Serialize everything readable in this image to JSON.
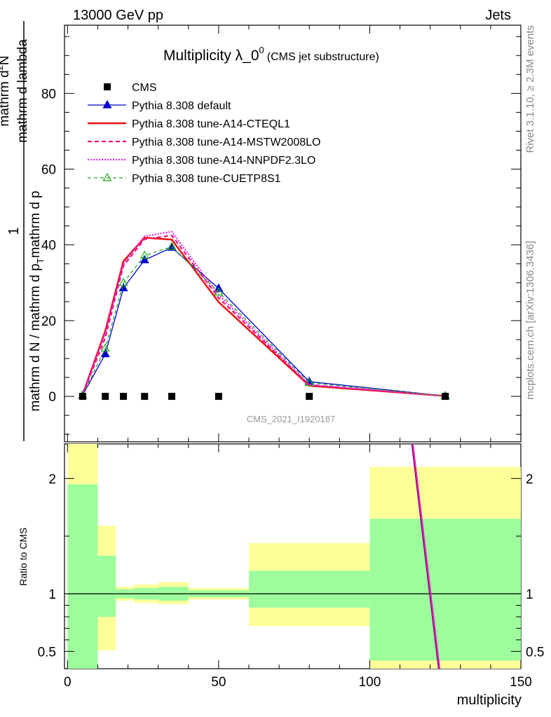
{
  "header": {
    "left": "13000 GeV pp",
    "right": "Jets"
  },
  "title": {
    "main": "Multiplicity λ_0",
    "sup": "0",
    "sub": "(CMS jet substructure)"
  },
  "side_labels": {
    "rivet": "Rivet 3.1.10, ≥ 2.3M events",
    "mcplots": "mcplots.cern.ch [arXiv:1306.3436]"
  },
  "analysis_id": "CMS_2021_I1920187",
  "ylabel_main": {
    "num": "1",
    "den_a": "mathrm d N / mathrm d p",
    "den_sub": "T",
    "den_b": "mathrm d p",
    "den_c": "mathrm d lambda",
    "num_frac_a": "mathrm d",
    "num_frac_sup": "2",
    "num_frac_b": "N"
  },
  "ylabel_ratio": "Ratio to CMS",
  "xlabel": "multiplicity",
  "colors": {
    "cms": "#000000",
    "default": "#0000cc",
    "cteql1": "#ee1111",
    "mstw": "#ee1188",
    "nnpdf": "#dd22dd",
    "cuetp8s1": "#22aa22",
    "band_inner": "#9dfd9d",
    "band_outer": "#ffff99"
  },
  "chart_data": {
    "type": "line",
    "xlim": [
      -1,
      150
    ],
    "x_ticks": [
      0,
      50,
      100,
      150
    ],
    "main": {
      "ylim": [
        -12,
        98
      ],
      "y_ticks": [
        0,
        20,
        40,
        60,
        80
      ]
    },
    "ratio": {
      "ylim": [
        0.35,
        2.3
      ],
      "y_ticks": [
        0.5,
        1,
        2
      ],
      "y_tick_labels": [
        "0.5",
        "1",
        "2"
      ]
    },
    "legend": {
      "position": "top-left",
      "entries": [
        "CMS",
        "Pythia 8.308 default",
        "Pythia 8.308 tune-A14-CTEQL1",
        "Pythia 8.308 tune-A14-MSTW2008LO",
        "Pythia 8.308 tune-A14-NNPDF2.3LO",
        "Pythia 8.308 tune-CUETP8S1"
      ]
    },
    "x": [
      5,
      12.5,
      18.5,
      25.5,
      34.5,
      50,
      80,
      125
    ],
    "series": [
      {
        "name": "CMS",
        "values": [
          0,
          0,
          0,
          0,
          0,
          0,
          0,
          0
        ]
      },
      {
        "name": "Pythia 8.308 default",
        "values": [
          0.3,
          11.2,
          28.6,
          36.0,
          39.3,
          28.5,
          3.9,
          0.1
        ]
      },
      {
        "name": "Pythia 8.308 tune-A14-CTEQL1",
        "values": [
          0.5,
          17.3,
          35.7,
          41.9,
          41.4,
          24.9,
          2.8,
          0.1
        ]
      },
      {
        "name": "Pythia 8.308 tune-A14-MSTW2008LO",
        "values": [
          0.4,
          15.5,
          34.5,
          41.5,
          42.5,
          26.0,
          3.0,
          0.1
        ]
      },
      {
        "name": "Pythia 8.308 tune-A14-NNPDF2.3LO",
        "values": [
          0.5,
          16.8,
          35.0,
          42.3,
          43.5,
          26.8,
          3.1,
          0.1
        ]
      },
      {
        "name": "Pythia 8.308 tune-CUETP8S1",
        "values": [
          0.3,
          12.7,
          30.0,
          37.2,
          39.5,
          27.5,
          3.6,
          0.1
        ]
      }
    ],
    "ratio_bands": [
      {
        "x0": 0,
        "x1": 10,
        "inner": [
          0.3,
          1.95
        ],
        "outer": [
          0.3,
          2.3
        ]
      },
      {
        "x0": 10,
        "x1": 16,
        "inner": [
          0.8,
          1.33
        ],
        "outer": [
          0.51,
          1.59
        ]
      },
      {
        "x0": 16,
        "x1": 22,
        "inner": [
          0.96,
          1.04
        ],
        "outer": [
          0.94,
          1.06
        ]
      },
      {
        "x0": 22,
        "x1": 30,
        "inner": [
          0.95,
          1.05
        ],
        "outer": [
          0.92,
          1.08
        ]
      },
      {
        "x0": 30,
        "x1": 40,
        "inner": [
          0.94,
          1.06
        ],
        "outer": [
          0.91,
          1.1
        ]
      },
      {
        "x0": 40,
        "x1": 60,
        "inner": [
          0.97,
          1.03
        ],
        "outer": [
          0.95,
          1.05
        ]
      },
      {
        "x0": 60,
        "x1": 100,
        "inner": [
          0.88,
          1.2
        ],
        "outer": [
          0.72,
          1.44
        ]
      },
      {
        "x0": 100,
        "x1": 150,
        "inner": [
          0.42,
          1.65
        ],
        "outer": [
          0.3,
          2.1
        ]
      }
    ],
    "ratio_line": {
      "x": [
        113,
        123
      ],
      "y": [
        2.5,
        0.3
      ]
    }
  }
}
